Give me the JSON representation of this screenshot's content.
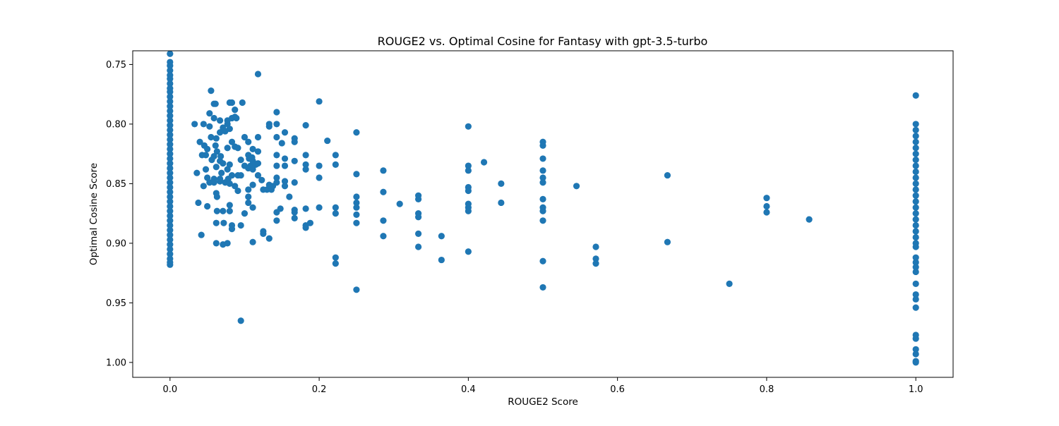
{
  "chart_data": {
    "type": "scatter",
    "title": "ROUGE2 vs. Optimal Cosine for Fantasy with gpt-3.5-turbo",
    "xlabel": "ROUGE2 Score",
    "ylabel": "Optimal Cosine Score",
    "xlim": [
      -0.05,
      1.05
    ],
    "ylim": [
      1.0125,
      0.7385
    ],
    "y_inverted": true,
    "grid": false,
    "legend": "none",
    "marker_color": "#1f77b4",
    "x_ticks": [
      0.0,
      0.2,
      0.4,
      0.6,
      0.8,
      1.0
    ],
    "x_tick_labels": [
      "0.0",
      "0.2",
      "0.4",
      "0.6",
      "0.8",
      "1.0"
    ],
    "y_ticks": [
      0.75,
      0.8,
      0.85,
      0.9,
      0.95,
      1.0
    ],
    "y_tick_labels": [
      "0.75",
      "0.80",
      "0.85",
      "0.90",
      "0.95",
      "1.00"
    ],
    "points": [
      [
        0,
        0.741
      ],
      [
        0,
        0.748
      ],
      [
        0,
        0.751
      ],
      [
        0,
        0.755
      ],
      [
        0,
        0.759
      ],
      [
        0,
        0.762
      ],
      [
        0,
        0.766
      ],
      [
        0,
        0.77
      ],
      [
        0,
        0.773
      ],
      [
        0,
        0.777
      ],
      [
        0,
        0.781
      ],
      [
        0,
        0.785
      ],
      [
        0,
        0.789
      ],
      [
        0,
        0.793
      ],
      [
        0,
        0.797
      ],
      [
        0,
        0.801
      ],
      [
        0,
        0.805
      ],
      [
        0,
        0.809
      ],
      [
        0,
        0.813
      ],
      [
        0,
        0.817
      ],
      [
        0,
        0.821
      ],
      [
        0,
        0.825
      ],
      [
        0,
        0.829
      ],
      [
        0,
        0.833
      ],
      [
        0,
        0.837
      ],
      [
        0,
        0.841
      ],
      [
        0,
        0.845
      ],
      [
        0,
        0.849
      ],
      [
        0,
        0.853
      ],
      [
        0,
        0.857
      ],
      [
        0,
        0.861
      ],
      [
        0,
        0.865
      ],
      [
        0,
        0.869
      ],
      [
        0,
        0.873
      ],
      [
        0,
        0.877
      ],
      [
        0,
        0.881
      ],
      [
        0,
        0.885
      ],
      [
        0,
        0.889
      ],
      [
        0,
        0.893
      ],
      [
        0,
        0.897
      ],
      [
        0,
        0.901
      ],
      [
        0,
        0.905
      ],
      [
        0,
        0.909
      ],
      [
        0,
        0.913
      ],
      [
        0,
        0.916
      ],
      [
        0,
        0.918
      ],
      [
        0.033,
        0.8
      ],
      [
        0.036,
        0.841
      ],
      [
        0.038,
        0.866
      ],
      [
        0.04,
        0.815
      ],
      [
        0.042,
        0.893
      ],
      [
        0.043,
        0.826
      ],
      [
        0.045,
        0.8
      ],
      [
        0.045,
        0.852
      ],
      [
        0.046,
        0.818
      ],
      [
        0.048,
        0.826
      ],
      [
        0.048,
        0.838
      ],
      [
        0.05,
        0.821
      ],
      [
        0.05,
        0.845
      ],
      [
        0.05,
        0.869
      ],
      [
        0.053,
        0.791
      ],
      [
        0.053,
        0.802
      ],
      [
        0.053,
        0.849
      ],
      [
        0.055,
        0.772
      ],
      [
        0.055,
        0.811
      ],
      [
        0.056,
        0.83
      ],
      [
        0.059,
        0.783
      ],
      [
        0.059,
        0.795
      ],
      [
        0.059,
        0.827
      ],
      [
        0.059,
        0.846
      ],
      [
        0.059,
        0.849
      ],
      [
        0.061,
        0.783
      ],
      [
        0.061,
        0.818
      ],
      [
        0.062,
        0.812
      ],
      [
        0.062,
        0.836
      ],
      [
        0.062,
        0.858
      ],
      [
        0.062,
        0.883
      ],
      [
        0.062,
        0.9
      ],
      [
        0.063,
        0.823
      ],
      [
        0.063,
        0.861
      ],
      [
        0.063,
        0.873
      ],
      [
        0.067,
        0.797
      ],
      [
        0.067,
        0.807
      ],
      [
        0.067,
        0.831
      ],
      [
        0.067,
        0.846
      ],
      [
        0.067,
        0.848
      ],
      [
        0.068,
        0.827
      ],
      [
        0.069,
        0.841
      ],
      [
        0.071,
        0.803
      ],
      [
        0.071,
        0.833
      ],
      [
        0.071,
        0.873
      ],
      [
        0.071,
        0.901
      ],
      [
        0.072,
        0.883
      ],
      [
        0.074,
        0.806
      ],
      [
        0.074,
        0.849
      ],
      [
        0.077,
        0.797
      ],
      [
        0.077,
        0.838
      ],
      [
        0.077,
        0.9
      ],
      [
        0.077,
        0.8
      ],
      [
        0.077,
        0.82
      ],
      [
        0.078,
        0.846
      ],
      [
        0.08,
        0.782
      ],
      [
        0.08,
        0.804
      ],
      [
        0.08,
        0.834
      ],
      [
        0.08,
        0.85
      ],
      [
        0.08,
        0.868
      ],
      [
        0.08,
        0.873
      ],
      [
        0.083,
        0.782
      ],
      [
        0.083,
        0.815
      ],
      [
        0.083,
        0.843
      ],
      [
        0.083,
        0.885
      ],
      [
        0.083,
        0.888
      ],
      [
        0.083,
        0.795
      ],
      [
        0.087,
        0.788
      ],
      [
        0.087,
        0.794
      ],
      [
        0.087,
        0.819
      ],
      [
        0.087,
        0.852
      ],
      [
        0.089,
        0.795
      ],
      [
        0.091,
        0.82
      ],
      [
        0.091,
        0.843
      ],
      [
        0.091,
        0.856
      ],
      [
        0.095,
        0.83
      ],
      [
        0.095,
        0.843
      ],
      [
        0.095,
        0.885
      ],
      [
        0.095,
        0.965
      ],
      [
        0.097,
        0.782
      ],
      [
        0.1,
        0.811
      ],
      [
        0.1,
        0.835
      ],
      [
        0.1,
        0.875
      ],
      [
        0.105,
        0.815
      ],
      [
        0.105,
        0.826
      ],
      [
        0.105,
        0.837
      ],
      [
        0.105,
        0.855
      ],
      [
        0.105,
        0.861
      ],
      [
        0.105,
        0.866
      ],
      [
        0.106,
        0.829
      ],
      [
        0.108,
        0.835
      ],
      [
        0.11,
        0.828
      ],
      [
        0.111,
        0.821
      ],
      [
        0.111,
        0.831
      ],
      [
        0.111,
        0.838
      ],
      [
        0.111,
        0.851
      ],
      [
        0.111,
        0.87
      ],
      [
        0.111,
        0.899
      ],
      [
        0.115,
        0.834
      ],
      [
        0.118,
        0.758
      ],
      [
        0.118,
        0.811
      ],
      [
        0.118,
        0.823
      ],
      [
        0.118,
        0.833
      ],
      [
        0.118,
        0.843
      ],
      [
        0.123,
        0.847
      ],
      [
        0.125,
        0.855
      ],
      [
        0.125,
        0.89
      ],
      [
        0.125,
        0.892
      ],
      [
        0.13,
        0.855
      ],
      [
        0.133,
        0.8
      ],
      [
        0.133,
        0.802
      ],
      [
        0.133,
        0.851
      ],
      [
        0.133,
        0.896
      ],
      [
        0.136,
        0.855
      ],
      [
        0.138,
        0.852
      ],
      [
        0.143,
        0.79
      ],
      [
        0.143,
        0.8
      ],
      [
        0.143,
        0.811
      ],
      [
        0.143,
        0.826
      ],
      [
        0.143,
        0.835
      ],
      [
        0.143,
        0.845
      ],
      [
        0.143,
        0.849
      ],
      [
        0.143,
        0.874
      ],
      [
        0.143,
        0.881
      ],
      [
        0.148,
        0.871
      ],
      [
        0.15,
        0.816
      ],
      [
        0.154,
        0.807
      ],
      [
        0.154,
        0.829
      ],
      [
        0.154,
        0.835
      ],
      [
        0.154,
        0.848
      ],
      [
        0.154,
        0.852
      ],
      [
        0.16,
        0.861
      ],
      [
        0.167,
        0.812
      ],
      [
        0.167,
        0.815
      ],
      [
        0.167,
        0.831
      ],
      [
        0.167,
        0.849
      ],
      [
        0.167,
        0.872
      ],
      [
        0.167,
        0.874
      ],
      [
        0.167,
        0.879
      ],
      [
        0.182,
        0.801
      ],
      [
        0.182,
        0.826
      ],
      [
        0.182,
        0.834
      ],
      [
        0.182,
        0.838
      ],
      [
        0.182,
        0.871
      ],
      [
        0.182,
        0.885
      ],
      [
        0.182,
        0.887
      ],
      [
        0.188,
        0.883
      ],
      [
        0.2,
        0.781
      ],
      [
        0.2,
        0.835
      ],
      [
        0.2,
        0.845
      ],
      [
        0.2,
        0.87
      ],
      [
        0.211,
        0.814
      ],
      [
        0.222,
        0.826
      ],
      [
        0.222,
        0.834
      ],
      [
        0.222,
        0.87
      ],
      [
        0.222,
        0.875
      ],
      [
        0.222,
        0.912
      ],
      [
        0.222,
        0.917
      ],
      [
        0.25,
        0.807
      ],
      [
        0.25,
        0.842
      ],
      [
        0.25,
        0.861
      ],
      [
        0.25,
        0.866
      ],
      [
        0.25,
        0.87
      ],
      [
        0.25,
        0.876
      ],
      [
        0.25,
        0.883
      ],
      [
        0.25,
        0.939
      ],
      [
        0.286,
        0.839
      ],
      [
        0.286,
        0.857
      ],
      [
        0.286,
        0.881
      ],
      [
        0.286,
        0.894
      ],
      [
        0.308,
        0.867
      ],
      [
        0.333,
        0.86
      ],
      [
        0.333,
        0.863
      ],
      [
        0.333,
        0.875
      ],
      [
        0.333,
        0.878
      ],
      [
        0.333,
        0.892
      ],
      [
        0.333,
        0.903
      ],
      [
        0.364,
        0.894
      ],
      [
        0.364,
        0.914
      ],
      [
        0.4,
        0.802
      ],
      [
        0.4,
        0.835
      ],
      [
        0.4,
        0.839
      ],
      [
        0.4,
        0.853
      ],
      [
        0.4,
        0.856
      ],
      [
        0.4,
        0.867
      ],
      [
        0.4,
        0.87
      ],
      [
        0.4,
        0.873
      ],
      [
        0.4,
        0.907
      ],
      [
        0.421,
        0.832
      ],
      [
        0.444,
        0.85
      ],
      [
        0.444,
        0.866
      ],
      [
        0.5,
        0.815
      ],
      [
        0.5,
        0.818
      ],
      [
        0.5,
        0.829
      ],
      [
        0.5,
        0.839
      ],
      [
        0.5,
        0.845
      ],
      [
        0.5,
        0.849
      ],
      [
        0.5,
        0.863
      ],
      [
        0.5,
        0.87
      ],
      [
        0.5,
        0.873
      ],
      [
        0.5,
        0.881
      ],
      [
        0.5,
        0.915
      ],
      [
        0.5,
        0.937
      ],
      [
        0.545,
        0.852
      ],
      [
        0.571,
        0.903
      ],
      [
        0.571,
        0.913
      ],
      [
        0.571,
        0.917
      ],
      [
        0.667,
        0.843
      ],
      [
        0.667,
        0.899
      ],
      [
        0.75,
        0.934
      ],
      [
        0.8,
        0.862
      ],
      [
        0.8,
        0.869
      ],
      [
        0.8,
        0.874
      ],
      [
        0.857,
        0.88
      ],
      [
        1.0,
        0.776
      ],
      [
        1.0,
        0.8
      ],
      [
        1.0,
        0.805
      ],
      [
        1.0,
        0.81
      ],
      [
        1.0,
        0.815
      ],
      [
        1.0,
        0.82
      ],
      [
        1.0,
        0.825
      ],
      [
        1.0,
        0.83
      ],
      [
        1.0,
        0.835
      ],
      [
        1.0,
        0.84
      ],
      [
        1.0,
        0.845
      ],
      [
        1.0,
        0.85
      ],
      [
        1.0,
        0.855
      ],
      [
        1.0,
        0.86
      ],
      [
        1.0,
        0.865
      ],
      [
        1.0,
        0.87
      ],
      [
        1.0,
        0.875
      ],
      [
        1.0,
        0.88
      ],
      [
        1.0,
        0.885
      ],
      [
        1.0,
        0.89
      ],
      [
        1.0,
        0.895
      ],
      [
        1.0,
        0.9
      ],
      [
        1.0,
        0.903
      ],
      [
        1.0,
        0.912
      ],
      [
        1.0,
        0.916
      ],
      [
        1.0,
        0.92
      ],
      [
        1.0,
        0.924
      ],
      [
        1.0,
        0.934
      ],
      [
        1.0,
        0.943
      ],
      [
        1.0,
        0.947
      ],
      [
        1.0,
        0.954
      ],
      [
        1.0,
        0.977
      ],
      [
        1.0,
        0.98
      ],
      [
        1.0,
        0.989
      ],
      [
        1.0,
        0.993
      ],
      [
        1.0,
        0.999
      ],
      [
        1.0,
        1.0
      ]
    ]
  }
}
